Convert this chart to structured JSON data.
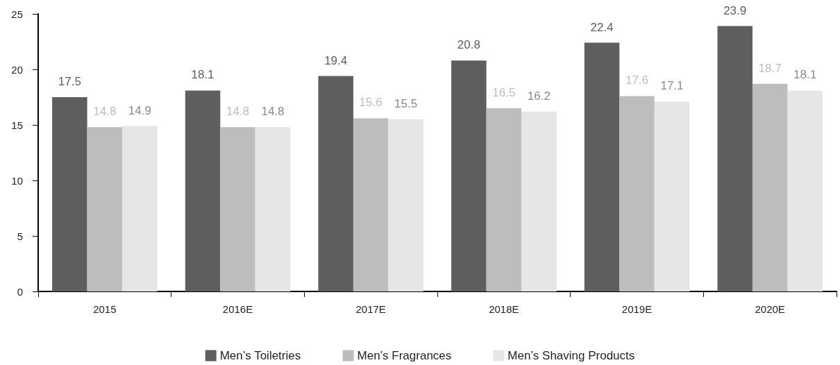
{
  "chart_data": {
    "type": "bar",
    "categories": [
      "2015",
      "2016E",
      "2017E",
      "2018E",
      "2019E",
      "2020E"
    ],
    "series": [
      {
        "name": "Men’s Toiletries",
        "color": "#5e5e5e",
        "values": [
          17.5,
          18.1,
          19.4,
          20.8,
          22.4,
          23.9
        ]
      },
      {
        "name": "Men’s Fragrances",
        "color": "#bdbdbd",
        "values": [
          14.8,
          14.8,
          15.6,
          16.5,
          17.6,
          18.7
        ]
      },
      {
        "name": "Men’s Shaving Products",
        "color": "#e6e6e6",
        "values": [
          14.9,
          14.8,
          15.5,
          16.2,
          17.1,
          18.1
        ]
      }
    ],
    "ylim": [
      0,
      25
    ],
    "yticks": [
      0,
      5,
      10,
      15,
      20,
      25
    ],
    "grid": false,
    "legend": "bottom",
    "data_labels": true
  }
}
